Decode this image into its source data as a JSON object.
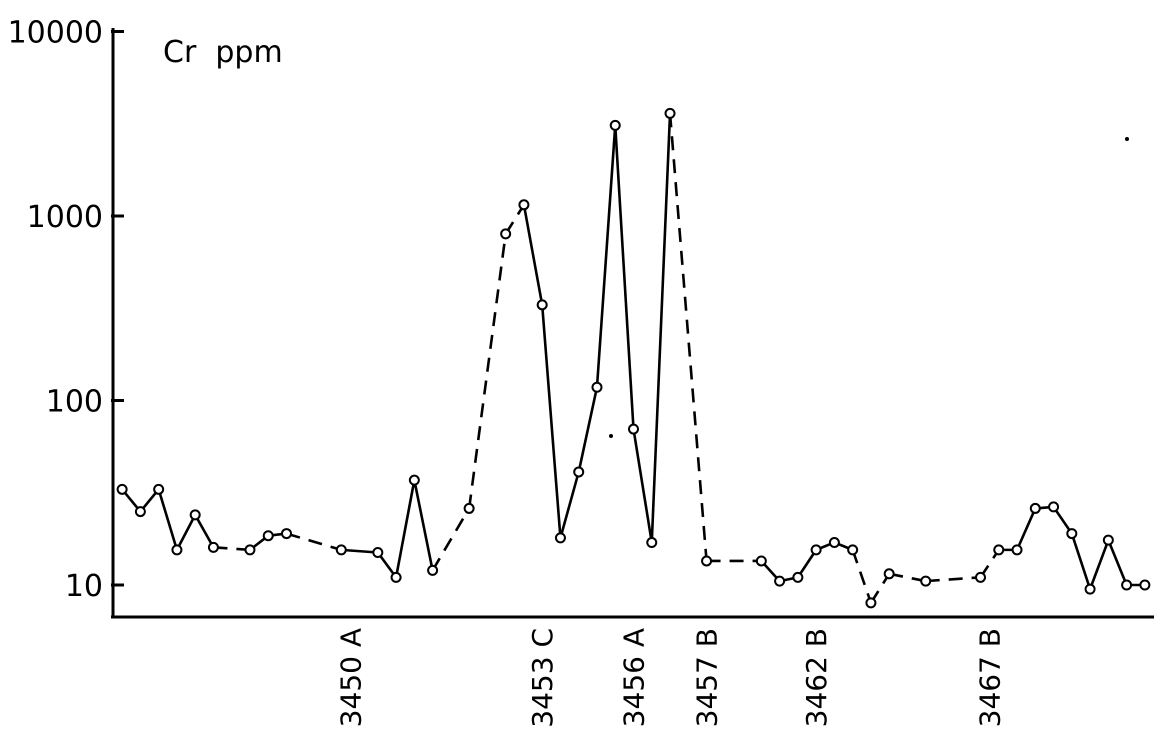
{
  "chart_data": {
    "type": "line",
    "title": "Cr  ppm",
    "ylabel": "",
    "xlabel": "",
    "yscale": "log",
    "ylim": [
      8,
      10000
    ],
    "xlim": [
      0,
      57
    ],
    "yticks": [
      {
        "value": 10,
        "label": "10"
      },
      {
        "value": 100,
        "label": "100"
      },
      {
        "value": 1000,
        "label": "1000"
      },
      {
        "value": 10000,
        "label": "10000"
      }
    ],
    "xtick_labels": [
      {
        "x": 13,
        "label": "3450 A"
      },
      {
        "x": 23.5,
        "label": "3453 C"
      },
      {
        "x": 28.5,
        "label": "3456 A"
      },
      {
        "x": 32.5,
        "label": "3457 B"
      },
      {
        "x": 38.5,
        "label": "3462 B"
      },
      {
        "x": 48,
        "label": "3467 B"
      }
    ],
    "grid": false,
    "series": [
      {
        "x": [
          0.5,
          1.5,
          2.5,
          3.5,
          4.5,
          5.5,
          7.5,
          8.5,
          9.5,
          12.5,
          14.5,
          15.5,
          16.5,
          17.5,
          19.5,
          21.5,
          22.5,
          23.5,
          24.5,
          25.5,
          26.5,
          27.5,
          28.5,
          29.5,
          30.5,
          32.5,
          35.5,
          36.5,
          37.5,
          38.5,
          39.5,
          40.5,
          41.5,
          42.5,
          44.5,
          47.5,
          48.5,
          49.5,
          50.5,
          51.5,
          52.5,
          53.5,
          54.5,
          55.5,
          56.5
        ],
        "y": [
          33,
          25,
          33,
          15.5,
          24,
          16,
          15.5,
          18.5,
          19,
          15.5,
          15,
          11,
          37,
          12,
          26,
          800,
          1150,
          330,
          18,
          41,
          118,
          3100,
          70,
          17,
          3600,
          13.5,
          13.5,
          10.5,
          11,
          15.5,
          17,
          15.5,
          8,
          11.5,
          10.5,
          11,
          15.5,
          15.5,
          26,
          26.5,
          19,
          9.5,
          17.5,
          10,
          10
        ],
        "dashed_segments": [
          5,
          7,
          8,
          13,
          14,
          15,
          24,
          25,
          31,
          32,
          33,
          34,
          35
        ]
      }
    ]
  }
}
